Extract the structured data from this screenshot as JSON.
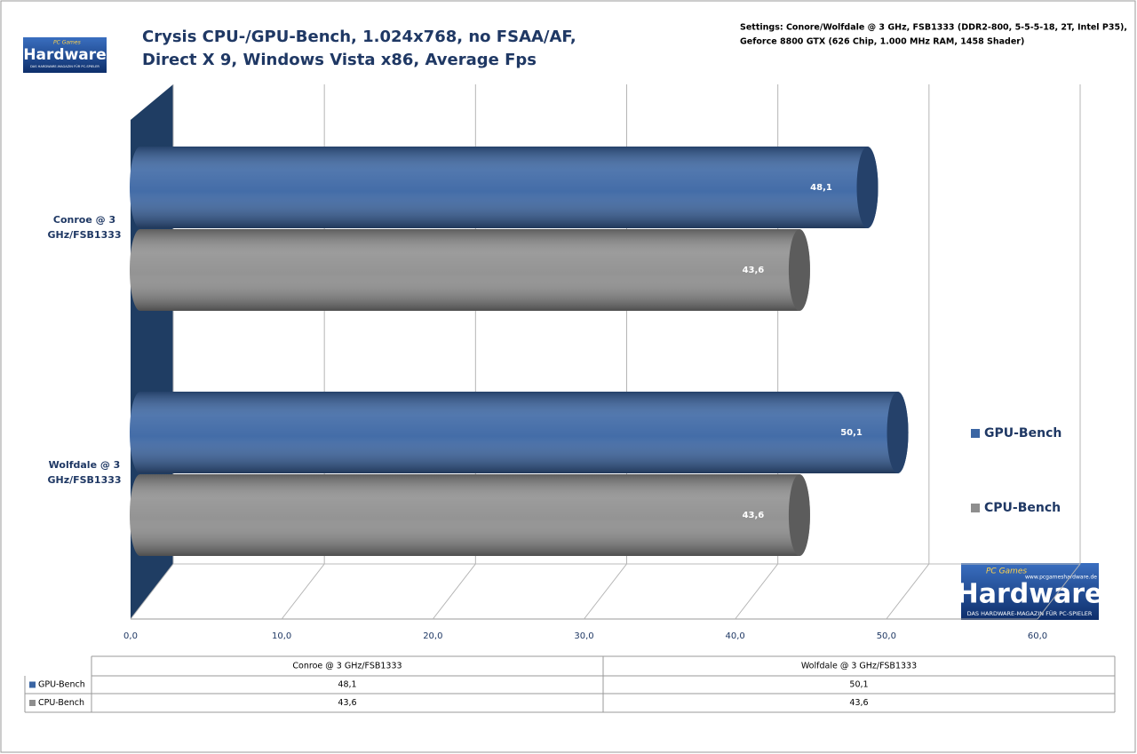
{
  "chart_data": {
    "type": "hbar3d",
    "title": [
      "Crysis CPU-/GPU-Bench, 1.024x768, no FSAA/AF,",
      "Direct X 9, Windows Vista x86, Average Fps"
    ],
    "subtitle": [
      "Settings: Conore/Wolfdale @ 3 GHz, FSB1333 (DDR2-800, 5-5-5-18, 2T, Intel P35),",
      "Geforce 8800 GTX (626 Chip, 1.000 MHz RAM, 1458 Shader)"
    ],
    "categories": [
      "Conroe @ 3 GHz/FSB1333",
      "Wolfdale @ 3 GHz/FSB1333"
    ],
    "series": [
      {
        "name": "GPU-Bench",
        "color": "#3a65a3",
        "values": [
          48.1,
          50.1
        ],
        "value_labels": [
          "48,1",
          "50,1"
        ]
      },
      {
        "name": "CPU-Bench",
        "color": "#8e8e8e",
        "values": [
          43.6,
          43.6
        ],
        "value_labels": [
          "43,6",
          "43,6"
        ]
      }
    ],
    "xlim": [
      0,
      60
    ],
    "xticks": [
      {
        "value": 0,
        "label": "0,0"
      },
      {
        "value": 10,
        "label": "10,0"
      },
      {
        "value": 20,
        "label": "20,0"
      },
      {
        "value": 30,
        "label": "30,0"
      },
      {
        "value": 40,
        "label": "40,0"
      },
      {
        "value": 50,
        "label": "50,0"
      },
      {
        "value": 60,
        "label": "60,0"
      }
    ],
    "grid": true,
    "legend": "right",
    "data_table": true
  },
  "logo": {
    "brand": "PC Games",
    "name": "Hardware",
    "url": "www.pcgameshardware.de",
    "tagline": "DAS HARDWARE-MAGAZIN FÜR PC-SPIELER"
  }
}
